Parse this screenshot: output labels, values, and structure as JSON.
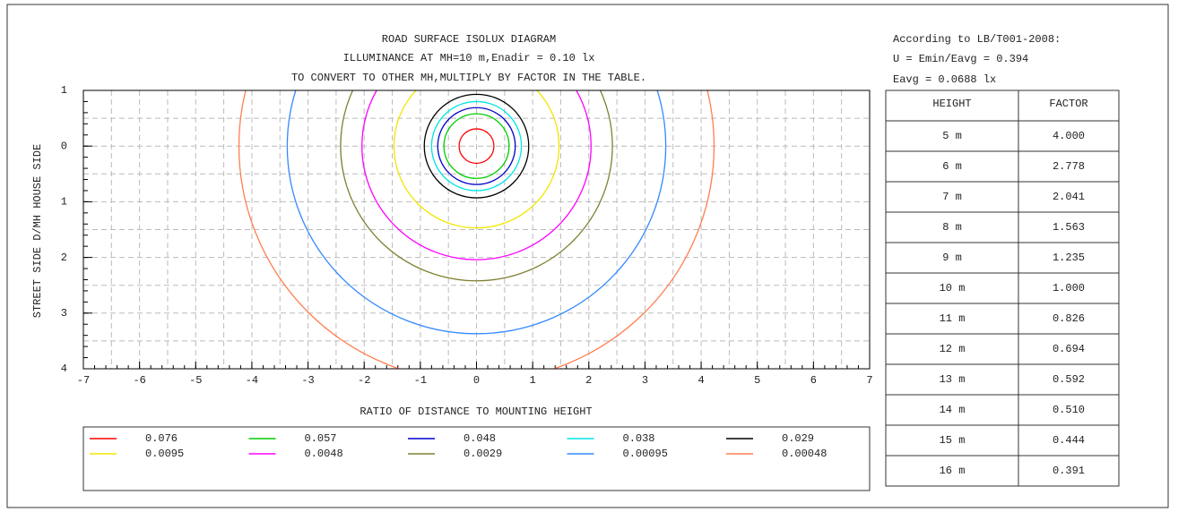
{
  "chart_data": {
    "type": "isolux",
    "title_lines": [
      "ROAD SURFACE ISOLUX DIAGRAM",
      "ILLUMINANCE AT MH=10 m,Enadir  = 0.10 lx",
      "TO CONVERT TO OTHER MH,MULTIPLY BY FACTOR IN THE TABLE."
    ],
    "notes": [
      "According to LB/T001-2008:",
      "U = Emin/Eavg = 0.394",
      "Eavg = 0.0688 lx"
    ],
    "x_label": "RATIO OF DISTANCE TO MOUNTING HEIGHT",
    "y_label": "STREET SIDE  D/MH  HOUSE SIDE",
    "xlim": [
      -7,
      7
    ],
    "xticks": [
      -7,
      -6,
      -5,
      -4,
      -3,
      -2,
      -1,
      0,
      1,
      2,
      3,
      4,
      5,
      6,
      7
    ],
    "ylim": [
      -1,
      4
    ],
    "yticks": [
      {
        "value": -1,
        "label": "1"
      },
      0,
      1,
      2,
      3,
      4
    ],
    "grid": true,
    "series": [
      {
        "name": 0.076,
        "color": "#ff0000",
        "radius": 0.31
      },
      {
        "name": 0.057,
        "color": "#00cc00",
        "radius": 0.58
      },
      {
        "name": 0.048,
        "color": "#0000cc",
        "radius": 0.69
      },
      {
        "name": 0.038,
        "color": "#00e5e5",
        "radius": 0.8
      },
      {
        "name": 0.029,
        "color": "#000000",
        "radius": 0.93
      },
      {
        "name": 0.0095,
        "color": "#f2e600",
        "radius": 1.47
      },
      {
        "name": 0.0048,
        "color": "#ff00ff",
        "radius": 2.04
      },
      {
        "name": 0.0029,
        "color": "#808033",
        "radius": 2.42
      },
      {
        "name": 0.00095,
        "color": "#3388ff",
        "radius": 3.37
      },
      {
        "name": 0.00048,
        "color": "#ff7f50",
        "radius": 4.23
      }
    ],
    "table": {
      "header": [
        "HEIGHT",
        "FACTOR"
      ],
      "rows": [
        [
          "5 m",
          "4.000"
        ],
        [
          "6 m",
          "2.778"
        ],
        [
          "7 m",
          "2.041"
        ],
        [
          "8 m",
          "1.563"
        ],
        [
          "9 m",
          "1.235"
        ],
        [
          "10 m",
          "1.000"
        ],
        [
          "11 m",
          "0.826"
        ],
        [
          "12 m",
          "0.694"
        ],
        [
          "13 m",
          "0.592"
        ],
        [
          "14 m",
          "0.510"
        ],
        [
          "15 m",
          "0.444"
        ],
        [
          "16 m",
          "0.391"
        ]
      ]
    }
  }
}
